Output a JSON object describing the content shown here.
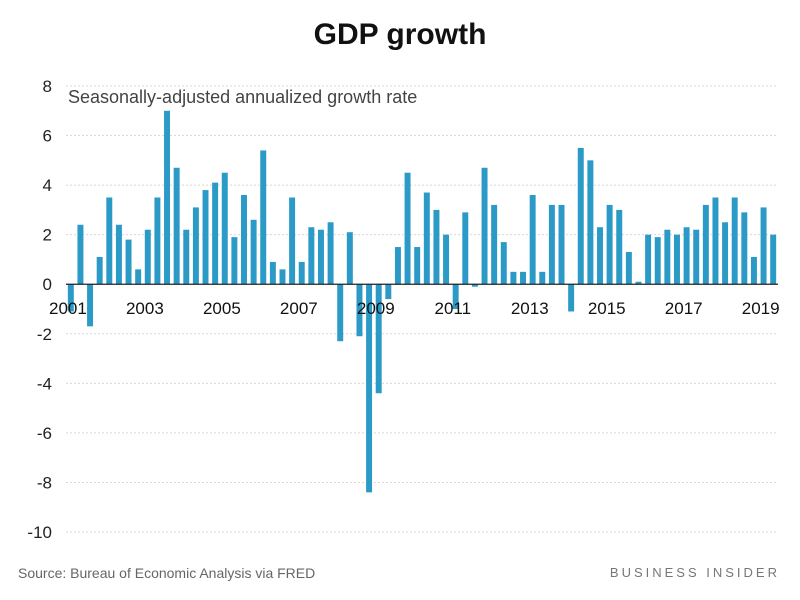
{
  "chart_data": {
    "type": "bar",
    "title": "GDP growth",
    "subtitle": "Seasonally-adjusted annualized growth rate",
    "ylabel": "",
    "xlabel": "",
    "ylim": [
      -10,
      8
    ],
    "yticks": [
      8,
      6,
      4,
      2,
      0,
      -2,
      -4,
      -6,
      -8,
      -10
    ],
    "xticks": [
      "2001",
      "2003",
      "2005",
      "2007",
      "2009",
      "2011",
      "2013",
      "2015",
      "2017",
      "2019"
    ],
    "start_year": 2001,
    "bar_color": "#2b9ac6",
    "grid": true,
    "categories": [
      "2001Q1",
      "2001Q2",
      "2001Q3",
      "2001Q4",
      "2002Q1",
      "2002Q2",
      "2002Q3",
      "2002Q4",
      "2003Q1",
      "2003Q2",
      "2003Q3",
      "2003Q4",
      "2004Q1",
      "2004Q2",
      "2004Q3",
      "2004Q4",
      "2005Q1",
      "2005Q2",
      "2005Q3",
      "2005Q4",
      "2006Q1",
      "2006Q2",
      "2006Q3",
      "2006Q4",
      "2007Q1",
      "2007Q2",
      "2007Q3",
      "2007Q4",
      "2008Q1",
      "2008Q2",
      "2008Q3",
      "2008Q4",
      "2009Q1",
      "2009Q2",
      "2009Q3",
      "2009Q4",
      "2010Q1",
      "2010Q2",
      "2010Q3",
      "2010Q4",
      "2011Q1",
      "2011Q2",
      "2011Q3",
      "2011Q4",
      "2012Q1",
      "2012Q2",
      "2012Q3",
      "2012Q4",
      "2013Q1",
      "2013Q2",
      "2013Q3",
      "2013Q4",
      "2014Q1",
      "2014Q2",
      "2014Q3",
      "2014Q4",
      "2015Q1",
      "2015Q2",
      "2015Q3",
      "2015Q4",
      "2016Q1",
      "2016Q2",
      "2016Q3",
      "2016Q4",
      "2017Q1",
      "2017Q2",
      "2017Q3",
      "2017Q4",
      "2018Q1",
      "2018Q2",
      "2018Q3",
      "2018Q4",
      "2019Q1",
      "2019Q2"
    ],
    "values": [
      -1.1,
      2.4,
      -1.7,
      1.1,
      3.5,
      2.4,
      1.8,
      0.6,
      2.2,
      3.5,
      7.0,
      4.7,
      2.2,
      3.1,
      3.8,
      4.1,
      4.5,
      1.9,
      3.6,
      2.6,
      5.4,
      0.9,
      0.6,
      3.5,
      0.9,
      2.3,
      2.2,
      2.5,
      -2.3,
      2.1,
      -2.1,
      -8.4,
      -4.4,
      -0.6,
      1.5,
      4.5,
      1.5,
      3.7,
      3.0,
      2.0,
      -1.0,
      2.9,
      -0.1,
      4.7,
      3.2,
      1.7,
      0.5,
      0.5,
      3.6,
      0.5,
      3.2,
      3.2,
      -1.1,
      5.5,
      5.0,
      2.3,
      3.2,
      3.0,
      1.3,
      0.1,
      2.0,
      1.9,
      2.2,
      2.0,
      2.3,
      2.2,
      3.2,
      3.5,
      2.5,
      3.5,
      2.9,
      1.1,
      3.1,
      2.0
    ]
  },
  "footer": {
    "source": "Source: Bureau of Economic Analysis via FRED",
    "brand": "BUSINESS INSIDER"
  }
}
